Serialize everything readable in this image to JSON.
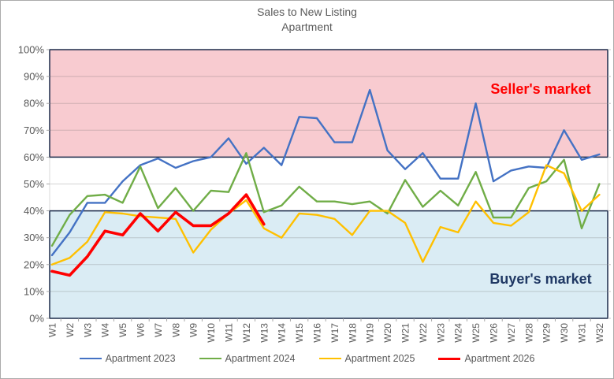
{
  "chart_data": {
    "type": "line",
    "title": "Sales to New Listing",
    "subtitle": "Apartment",
    "categories": [
      "W1",
      "W2",
      "W3",
      "W4",
      "W5",
      "W6",
      "W7",
      "W8",
      "W9",
      "W10",
      "W11",
      "W12",
      "W13",
      "W14",
      "W15",
      "W16",
      "W17",
      "W18",
      "W19",
      "W20",
      "W21",
      "W22",
      "W23",
      "W24",
      "W25",
      "W26",
      "W27",
      "W28",
      "W29",
      "W30",
      "W31",
      "W32"
    ],
    "y_axis": {
      "min": 0,
      "max": 100,
      "step": 10,
      "tick_labels": [
        "0%",
        "10%",
        "20%",
        "30%",
        "40%",
        "50%",
        "60%",
        "70%",
        "80%",
        "90%",
        "100%"
      ]
    },
    "grid": true,
    "legend_position": "bottom",
    "series": [
      {
        "name": "Apartment 2023",
        "color": "#4472C4",
        "width": 2.4,
        "values": [
          23.5,
          32,
          43,
          43,
          51,
          57,
          59.5,
          56,
          58.5,
          60,
          67,
          57.5,
          63.5,
          57,
          75,
          74.5,
          65.5,
          65.5,
          85,
          62.5,
          55.5,
          61.5,
          52,
          52,
          80,
          51,
          55,
          56.5,
          56,
          70,
          59,
          61
        ]
      },
      {
        "name": "Apartment 2024",
        "color": "#70AD47",
        "width": 2.4,
        "values": [
          27,
          38.5,
          45.5,
          46,
          43,
          56.5,
          41,
          48.5,
          40,
          47.5,
          47,
          61.5,
          39.5,
          42,
          49,
          43.5,
          43.5,
          42.5,
          43.5,
          39,
          51.5,
          41.5,
          47.5,
          42,
          54.5,
          37.5,
          37.5,
          48.5,
          51,
          59,
          33.5,
          50
        ]
      },
      {
        "name": "Apartment 2025",
        "color": "#FFC000",
        "width": 2.4,
        "values": [
          20,
          22.5,
          28.5,
          39.5,
          39,
          38,
          37.5,
          37,
          24.5,
          33,
          39,
          44,
          33.5,
          30,
          39,
          38.5,
          37,
          31,
          40,
          40,
          35.5,
          21,
          34,
          32,
          43.5,
          35.5,
          34.5,
          39.5,
          57,
          54,
          40,
          46
        ]
      },
      {
        "name": "Apartment 2026",
        "color": "#FF0000",
        "width": 3.6,
        "values": [
          17.5,
          16,
          23,
          32.5,
          31,
          39,
          32.5,
          39.5,
          34.5,
          34.5,
          39,
          46,
          35,
          null,
          null,
          null,
          null,
          null,
          null,
          null,
          null,
          null,
          null,
          null,
          null,
          null,
          null,
          null,
          null,
          null,
          null,
          null
        ]
      }
    ],
    "bands": [
      {
        "label": "Seller's market",
        "from": 60,
        "to": 100,
        "fill": "#F8CBD0",
        "border": "#1C2B4A",
        "text_color": "#FF0000"
      },
      {
        "label": "Buyer's market",
        "from": 0,
        "to": 40,
        "fill": "#DAECF4",
        "border": "#1C2B4A",
        "text_color": "#1F3864"
      }
    ]
  }
}
